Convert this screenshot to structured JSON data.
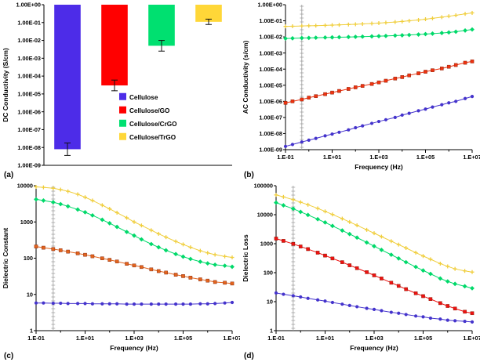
{
  "figure": {
    "background": "#ffffff",
    "panels": [
      {
        "label": "(a)"
      },
      {
        "label": "(b)"
      },
      {
        "label": "(c)"
      },
      {
        "label": "(d)"
      }
    ]
  },
  "chart_data": [
    {
      "id": "a",
      "type": "bar",
      "title": "",
      "xlabel": "",
      "ylabel": "DC Conductivity (S/cm)",
      "yscale": "log",
      "ylim": [
        1e-09,
        1
      ],
      "yticks": [
        1,
        0.1,
        0.01,
        0.001,
        0.0001,
        1e-05,
        1e-06,
        1e-07,
        1e-08,
        1e-09
      ],
      "ytick_labels": [
        "1.00E+00",
        "1.00E-01",
        "1.00E-02",
        "1.00E-03",
        "1.00E-04",
        "1.00E-05",
        "1.00E-06",
        "1.00E-07",
        "1.00E-08",
        "1.00E-09"
      ],
      "categories": [
        "Cellulose",
        "Cellulose/GO",
        "Cellulose/CrGO",
        "Cellulose/TrGO"
      ],
      "values": [
        8e-09,
        3e-05,
        0.005,
        0.11
      ],
      "error_decades": [
        0.35,
        0.3,
        0.3,
        0.15
      ],
      "colors": [
        "#4D2CE8",
        "#FF0000",
        "#00E070",
        "#FFD738"
      ],
      "legend": [
        "Cellulose",
        "Cellulose/GO",
        "Cellulose/CrGO",
        "Cellulose/TrGO"
      ],
      "legend_position": "inside-lower-center",
      "bar_baseline": "top",
      "grid": false,
      "margins": {
        "l": 56,
        "t": 6,
        "r": 10,
        "b": 14
      }
    },
    {
      "id": "b",
      "type": "line",
      "title": "",
      "xlabel": "Frequency (Hz)",
      "ylabel": "AC Conductivity (s/cm)",
      "xscale": "log",
      "yscale": "log",
      "xlim": [
        0.1,
        10000000.0
      ],
      "ylim": [
        1e-09,
        1
      ],
      "xticks": [
        0.1,
        10.0,
        1000.0,
        100000.0,
        10000000.0
      ],
      "xtick_labels": [
        "1.E-01",
        "1.E+01",
        "1.E+03",
        "1.E+05",
        "1.E+07"
      ],
      "yticks": [
        1,
        0.1,
        0.01,
        0.001,
        0.0001,
        1e-05,
        1e-06,
        1e-07,
        1e-08,
        1e-09
      ],
      "ytick_labels": [
        "1.00E+00",
        "1.00E-01",
        "1.00E-02",
        "1.00E-03",
        "1.00E-04",
        "1.00E-05",
        "1.00E-06",
        "1.00E-07",
        "1.00E-08",
        "1.00E-09"
      ],
      "vline_x": 0.5,
      "grid": false,
      "x": [
        0.1,
        0.2,
        0.5,
        1,
        2,
        5,
        10,
        20,
        50,
        100,
        200,
        500,
        1000,
        2000,
        5000,
        10000,
        20000,
        50000,
        100000,
        200000,
        500000,
        1000000,
        2000000,
        5000000,
        10000000
      ],
      "series": [
        {
          "name": "Cellulose",
          "color": "#4433CC",
          "marker": "circle",
          "values": [
            1.6e-09,
            2.1e-09,
            3e-09,
            3.9e-09,
            5e-09,
            7.2e-09,
            9.3e-09,
            1.2e-08,
            1.7e-08,
            2.3e-08,
            3e-08,
            4.3e-08,
            5.6e-08,
            7.2e-08,
            1e-07,
            1.4e-07,
            1.8e-07,
            2.6e-07,
            3.3e-07,
            4.4e-07,
            6.2e-07,
            8.1e-07,
            1e-06,
            1.5e-06,
            2e-06
          ]
        },
        {
          "name": "Cellulose/GO",
          "color": "#EE3311",
          "marker": "square",
          "values": [
            8e-07,
            1e-06,
            1.3e-06,
            1.7e-06,
            2.1e-06,
            2.8e-06,
            3.5e-06,
            4.4e-06,
            5.9e-06,
            7.4e-06,
            9.1e-06,
            1.2e-05,
            1.5e-05,
            1.9e-05,
            2.6e-05,
            3.2e-05,
            4.1e-05,
            5.5e-05,
            6.9e-05,
            8.5e-05,
            0.00011,
            0.00014,
            0.00018,
            0.00025,
            0.0003
          ]
        },
        {
          "name": "Cellulose/CrGO",
          "color": "#00D96A",
          "marker": "diamond",
          "values": [
            0.008,
            0.0082,
            0.0085,
            0.0087,
            0.0089,
            0.0092,
            0.0094,
            0.0096,
            0.0099,
            0.0101,
            0.0104,
            0.0108,
            0.0111,
            0.0115,
            0.0121,
            0.0126,
            0.0132,
            0.0141,
            0.015,
            0.016,
            0.0176,
            0.019,
            0.021,
            0.025,
            0.029
          ]
        },
        {
          "name": "Cellulose/TrGO",
          "color": "#F0CE3C",
          "marker": "plus",
          "values": [
            0.045,
            0.046,
            0.048,
            0.049,
            0.05,
            0.052,
            0.054,
            0.056,
            0.059,
            0.061,
            0.064,
            0.068,
            0.072,
            0.077,
            0.084,
            0.091,
            0.1,
            0.113,
            0.126,
            0.142,
            0.168,
            0.193,
            0.22,
            0.27,
            0.31
          ]
        }
      ],
      "margins": {
        "l": 58,
        "t": 6,
        "r": 10,
        "b": 34
      }
    },
    {
      "id": "c",
      "type": "line",
      "title": "",
      "xlabel": "Frequency (Hz)",
      "ylabel": "Dielectric Constant",
      "xscale": "log",
      "yscale": "log",
      "xlim": [
        0.1,
        10000000.0
      ],
      "ylim": [
        1,
        10000
      ],
      "xticks": [
        0.1,
        10.0,
        1000.0,
        100000.0,
        10000000.0
      ],
      "xtick_labels": [
        "1.E-01",
        "1.E+01",
        "1.E+03",
        "1.E+05",
        "1.E+07"
      ],
      "yticks": [
        1,
        10,
        100,
        1000,
        10000
      ],
      "ytick_labels": [
        "1",
        "10",
        "100",
        "1000",
        "10000"
      ],
      "vline_x": 0.5,
      "grid": false,
      "x": [
        0.1,
        0.2,
        0.5,
        1,
        2,
        5,
        10,
        20,
        50,
        100,
        200,
        500,
        1000,
        2000,
        5000,
        10000,
        20000,
        50000,
        100000,
        200000,
        500000,
        1000000,
        2000000,
        5000000,
        10000000
      ],
      "series": [
        {
          "name": "Cellulose",
          "color": "#4433CC",
          "marker": "circle",
          "values": [
            5.8,
            5.8,
            5.7,
            5.7,
            5.6,
            5.6,
            5.6,
            5.5,
            5.5,
            5.5,
            5.5,
            5.4,
            5.4,
            5.4,
            5.4,
            5.4,
            5.4,
            5.4,
            5.4,
            5.4,
            5.5,
            5.5,
            5.6,
            5.8,
            6.0
          ]
        },
        {
          "name": "Cellulose/GO",
          "color": "#E2641E",
          "marker": "square",
          "values": [
            210,
            195,
            178,
            165,
            152,
            136,
            124,
            113,
            99,
            90,
            81,
            70,
            63,
            57,
            49,
            44,
            40,
            35,
            32,
            29,
            26,
            24,
            22,
            21,
            20
          ]
        },
        {
          "name": "Cellulose/CrGO",
          "color": "#00D96A",
          "marker": "diamond",
          "values": [
            4200,
            3900,
            3500,
            3100,
            2700,
            2200,
            1850,
            1520,
            1150,
            920,
            730,
            530,
            420,
            330,
            245,
            200,
            165,
            130,
            110,
            95,
            80,
            72,
            66,
            62,
            58
          ]
        },
        {
          "name": "Cellulose/TrGO",
          "color": "#F0CE3C",
          "marker": "plus",
          "values": [
            9300,
            9000,
            8500,
            7800,
            7000,
            5800,
            4800,
            3900,
            2900,
            2300,
            1800,
            1300,
            1000,
            800,
            590,
            470,
            380,
            290,
            240,
            200,
            160,
            140,
            125,
            112,
            105
          ]
        }
      ],
      "margins": {
        "l": 46,
        "t": 6,
        "r": 10,
        "b": 34
      }
    },
    {
      "id": "d",
      "type": "line",
      "title": "",
      "xlabel": "Frequency (Hz)",
      "ylabel": "Dielectric Loss",
      "xscale": "log",
      "yscale": "log",
      "xlim": [
        0.1,
        10000000.0
      ],
      "ylim": [
        1,
        100000
      ],
      "xticks": [
        0.1,
        10.0,
        1000.0,
        100000.0,
        10000000.0
      ],
      "xtick_labels": [
        "1.E-01",
        "1.E+01",
        "1.E+03",
        "1.E+05",
        "1.E+07"
      ],
      "yticks": [
        1,
        10,
        100,
        1000,
        10000,
        100000
      ],
      "ytick_labels": [
        "1",
        "10",
        "100",
        "1000",
        "10000",
        "100000"
      ],
      "vline_x": 0.5,
      "grid": false,
      "x": [
        0.1,
        0.2,
        0.5,
        1,
        2,
        5,
        10,
        20,
        50,
        100,
        200,
        500,
        1000,
        2000,
        5000,
        10000,
        20000,
        50000,
        100000,
        200000,
        500000,
        1000000,
        2000000,
        5000000,
        10000000
      ],
      "series": [
        {
          "name": "Cellulose",
          "color": "#4433CC",
          "marker": "circle",
          "values": [
            20,
            18,
            16,
            14.5,
            13,
            11.5,
            10.5,
            9.4,
            8.2,
            7.4,
            6.7,
            5.9,
            5.4,
            4.9,
            4.3,
            4.0,
            3.6,
            3.2,
            3.0,
            2.7,
            2.5,
            2.3,
            2.2,
            2.1,
            2.0
          ]
        },
        {
          "name": "Cellulose/GO",
          "color": "#EE1111",
          "marker": "square",
          "values": [
            1500,
            1250,
            980,
            800,
            650,
            490,
            390,
            310,
            230,
            180,
            143,
            104,
            81,
            63,
            45,
            35,
            27,
            19.5,
            15.5,
            12.3,
            8.9,
            7.1,
            5.8,
            4.5,
            4.0
          ]
        },
        {
          "name": "Cellulose/CrGO",
          "color": "#00D96A",
          "marker": "diamond",
          "values": [
            26000,
            21000,
            16000,
            12500,
            9800,
            7000,
            5400,
            4100,
            2850,
            2150,
            1620,
            1100,
            820,
            610,
            415,
            310,
            230,
            158,
            119,
            91,
            63,
            50,
            41,
            34,
            29
          ]
        },
        {
          "name": "Cellulose/TrGO",
          "color": "#F0CE3C",
          "marker": "plus",
          "values": [
            48000,
            41000,
            33000,
            27000,
            22000,
            16500,
            13000,
            10200,
            7300,
            5600,
            4300,
            3000,
            2300,
            1750,
            1220,
            930,
            710,
            490,
            375,
            290,
            205,
            165,
            135,
            115,
            105
          ]
        }
      ],
      "margins": {
        "l": 46,
        "t": 6,
        "r": 10,
        "b": 34
      }
    }
  ]
}
